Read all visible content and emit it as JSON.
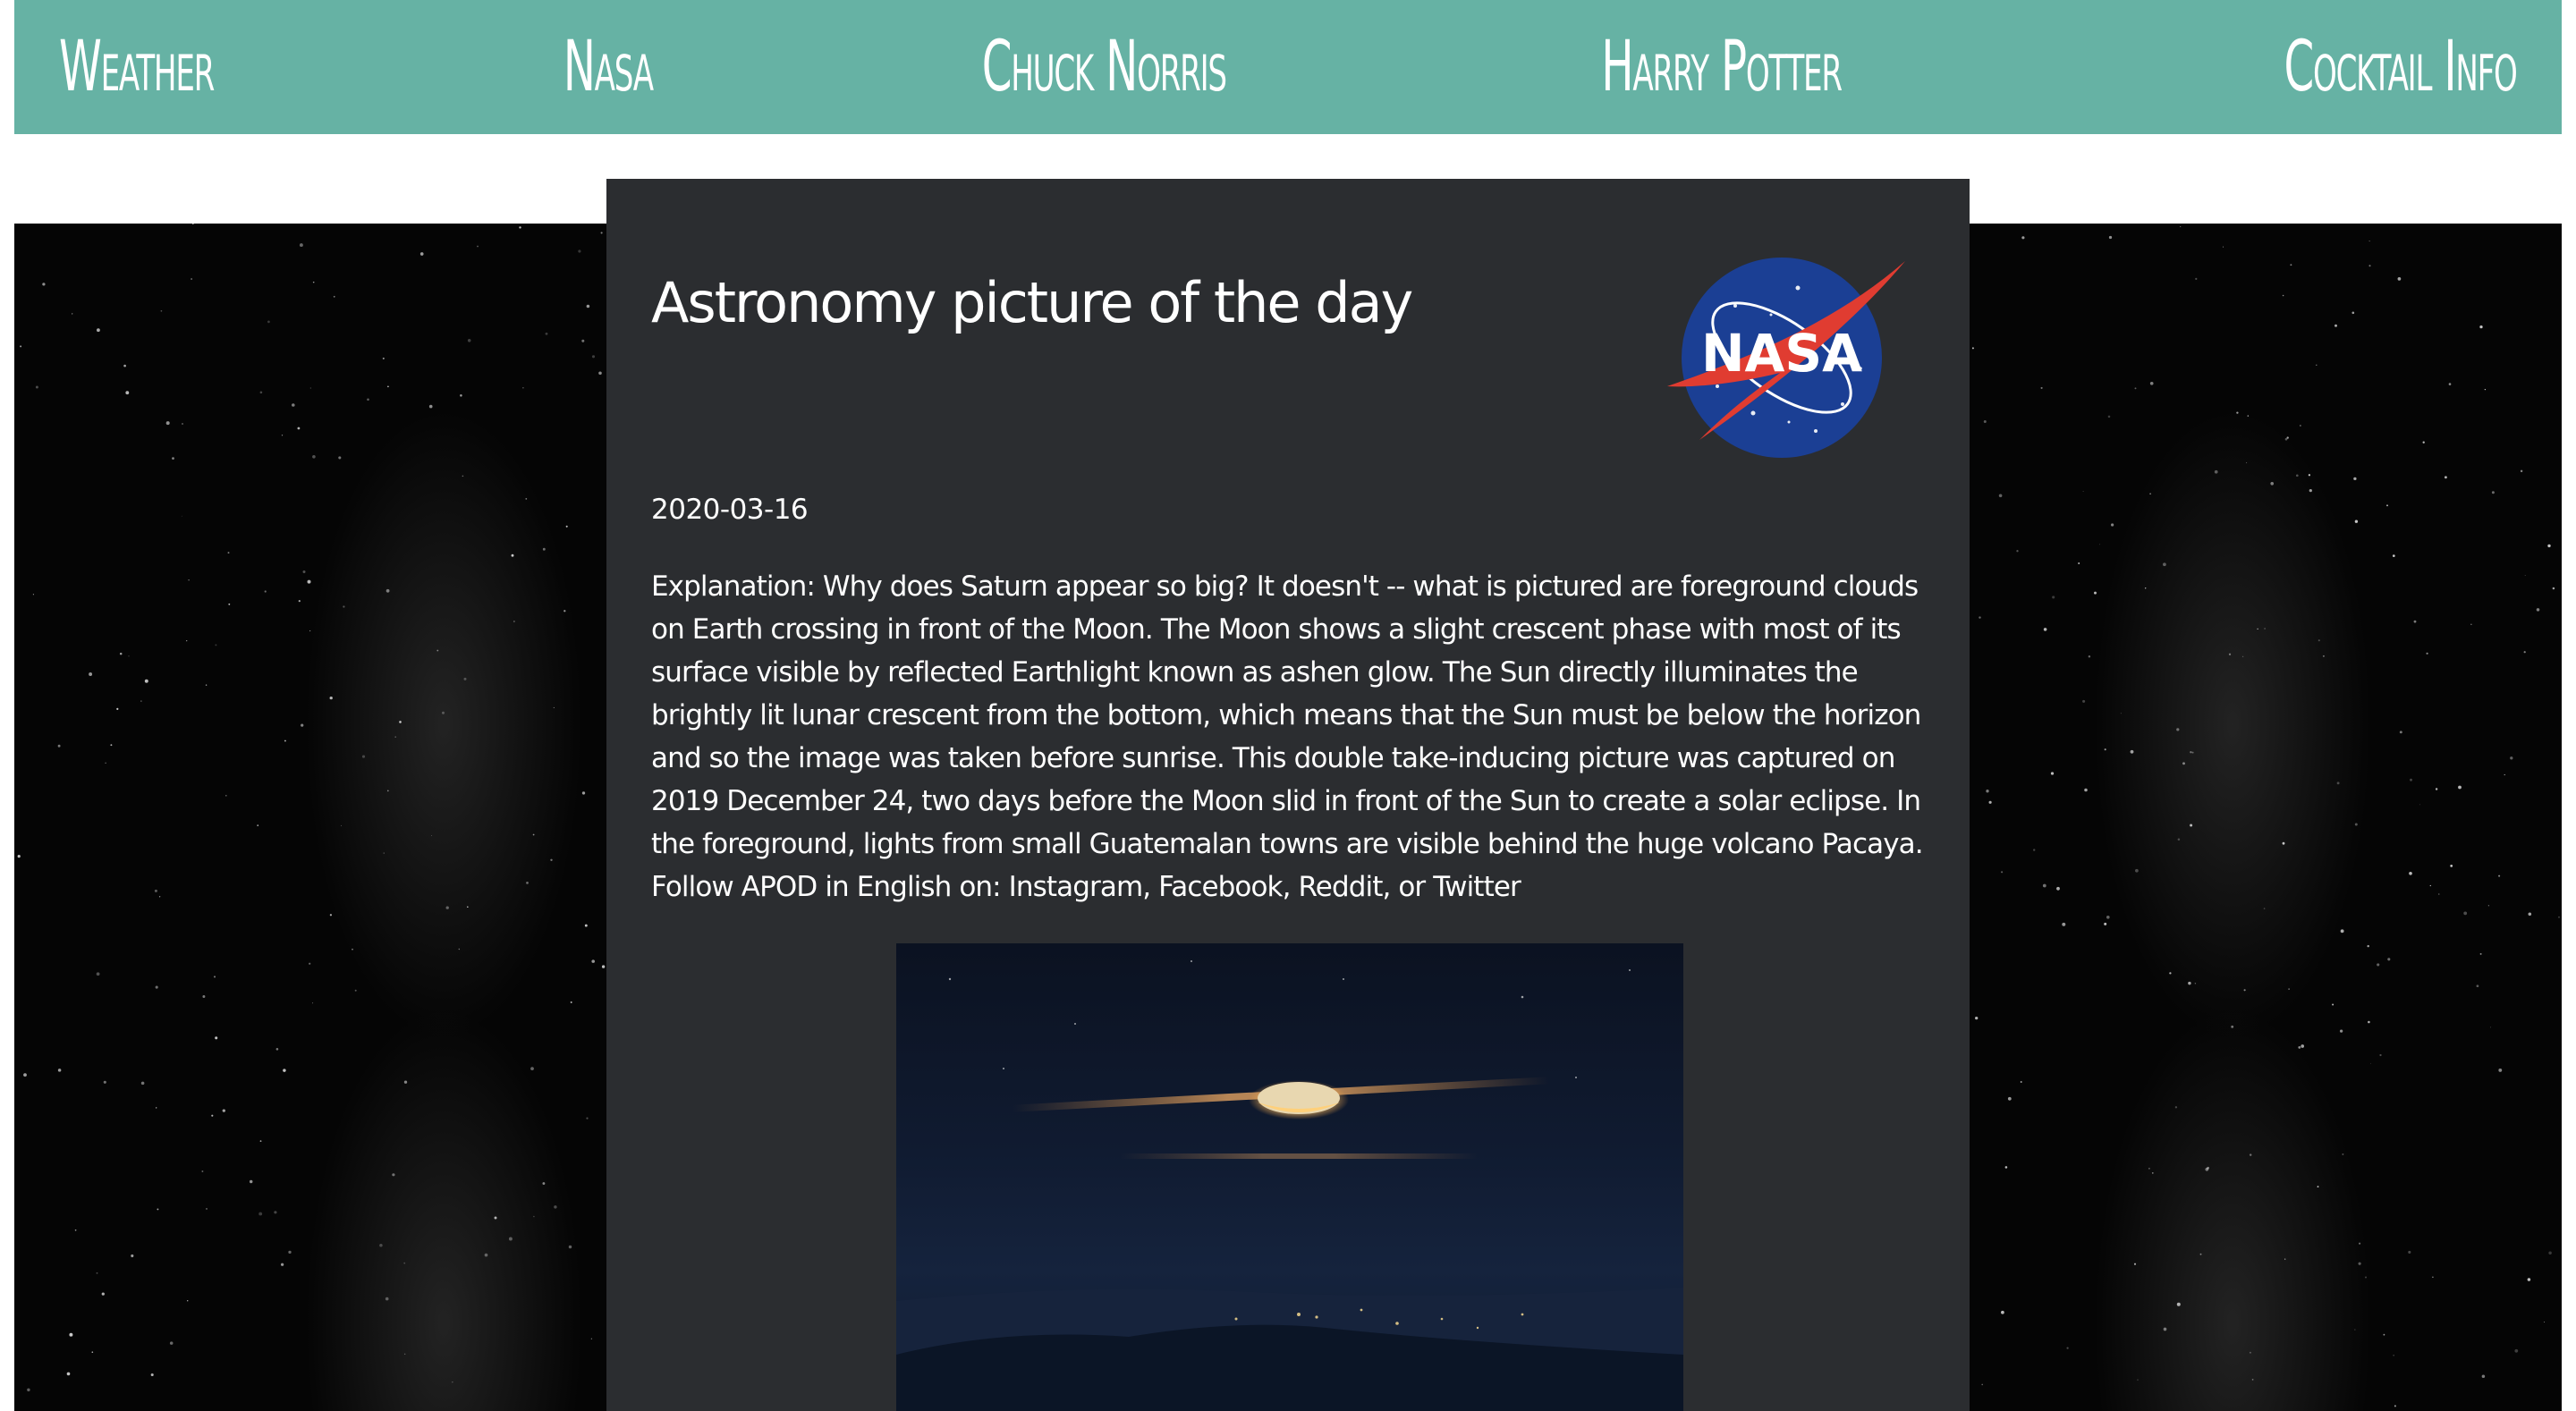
{
  "nav": {
    "items": [
      {
        "label": "Weather"
      },
      {
        "label": "Nasa"
      },
      {
        "label": "Chuck Norris"
      },
      {
        "label": "Harry Potter"
      },
      {
        "label": "Cocktail Info"
      }
    ]
  },
  "card": {
    "title": "Astronomy picture of the day",
    "logo_text": "NASA",
    "date": "2020-03-16",
    "explanation": "Explanation: Why does Saturn appear so big? It doesn't -- what is pictured are foreground clouds on Earth crossing in front of the Moon. The Moon shows a slight crescent phase with most of its surface visible by reflected Earthlight known as ashen glow. The Sun directly illuminates the brightly lit lunar crescent from the bottom, which means that the Sun must be below the horizon and so the image was taken before sunrise. This double take-inducing picture was captured on 2019 December 24, two days before the Moon slid in front of the Sun to create a solar eclipse. In the foreground, lights from small Guatemalan towns are visible behind the huge volcano Pacaya. Follow APOD in English on: Instagram, Facebook, Reddit, or Twitter"
  },
  "colors": {
    "nav_bg": "#66b2a4",
    "card_bg": "#2b2d30",
    "nasa_blue": "#1b3f94",
    "nasa_red": "#e03c31"
  },
  "icons": {
    "logo": "nasa-meatball-logo"
  }
}
